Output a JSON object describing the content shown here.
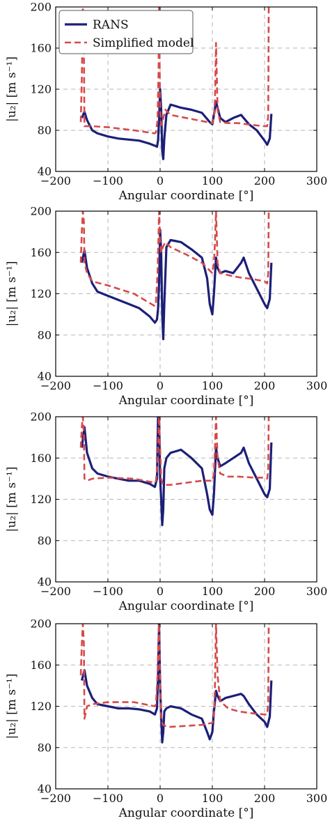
{
  "chart_data": [
    {
      "type": "line",
      "xlabel": "Angular coordinate [°]",
      "ylabel": "|u₂| [m s⁻¹]",
      "xlim": [
        -200,
        300
      ],
      "ylim": [
        40,
        200
      ],
      "xticks": [
        "−200",
        "−100",
        "0",
        "100",
        "200",
        "300"
      ],
      "yticks": [
        "40",
        "80",
        "120",
        "160",
        "200"
      ],
      "grid": "dashed",
      "legend": {
        "placement": "top-left",
        "entries": [
          "RANS",
          "Simplified model"
        ]
      },
      "colors": {
        "RANS": "#1c1f78",
        "Simplified model": "#d64a4a"
      },
      "series": [
        {
          "name": "RANS",
          "x": [
            -150,
            -145,
            -140,
            -130,
            -120,
            -100,
            -80,
            -60,
            -40,
            -20,
            -10,
            -6,
            -4,
            -2,
            0,
            2,
            4,
            6,
            8,
            12,
            20,
            40,
            60,
            80,
            95,
            100,
            103,
            107,
            110,
            115,
            125,
            140,
            155,
            160,
            170,
            185,
            200,
            205,
            210,
            213
          ],
          "y": [
            92,
            98,
            90,
            80,
            77,
            74,
            72,
            71,
            70,
            67,
            65,
            64,
            70,
            90,
            120,
            100,
            60,
            52,
            72,
            95,
            105,
            102,
            100,
            97,
            88,
            86,
            95,
            108,
            102,
            92,
            88,
            92,
            95,
            92,
            86,
            80,
            70,
            66,
            72,
            96
          ]
        },
        {
          "name": "Simplified model",
          "x": [
            -152,
            -150,
            -148,
            -146,
            -145,
            -140,
            -130,
            -100,
            -50,
            -10,
            -8,
            -5,
            -3,
            -2,
            0,
            2,
            5,
            10,
            20,
            50,
            80,
            100,
            103,
            105,
            107,
            110,
            115,
            130,
            150,
            180,
            200,
            205,
            207,
            208,
            210
          ],
          "y": [
            88,
            130,
            200,
            160,
            84,
            84,
            84,
            83,
            80,
            77,
            78,
            90,
            140,
            200,
            100,
            85,
            90,
            100,
            95,
            92,
            89,
            87,
            92,
            110,
            165,
            100,
            88,
            87,
            87,
            85,
            84,
            84,
            95,
            200,
            200
          ]
        }
      ]
    },
    {
      "type": "line",
      "xlabel": "Angular coordinate [°]",
      "ylabel": "|u₂| [m s⁻¹]",
      "xlim": [
        -200,
        300
      ],
      "ylim": [
        40,
        200
      ],
      "xticks": [
        "−200",
        "−100",
        "0",
        "100",
        "200",
        "300"
      ],
      "yticks": [
        "40",
        "80",
        "120",
        "160",
        "200"
      ],
      "grid": "dashed",
      "colors": {
        "RANS": "#1c1f78",
        "Simplified model": "#d64a4a"
      },
      "series": [
        {
          "name": "RANS",
          "x": [
            -150,
            -145,
            -140,
            -130,
            -120,
            -100,
            -80,
            -60,
            -40,
            -20,
            -10,
            -6,
            -4,
            -2,
            0,
            2,
            4,
            6,
            8,
            12,
            20,
            40,
            60,
            80,
            90,
            95,
            100,
            103,
            107,
            110,
            115,
            125,
            140,
            155,
            160,
            170,
            185,
            200,
            205,
            210,
            213
          ],
          "y": [
            150,
            162,
            145,
            130,
            122,
            118,
            114,
            110,
            106,
            98,
            92,
            95,
            105,
            130,
            182,
            160,
            100,
            76,
            110,
            165,
            172,
            170,
            163,
            155,
            135,
            110,
            100,
            120,
            155,
            145,
            140,
            142,
            140,
            150,
            155,
            140,
            125,
            110,
            106,
            115,
            150
          ]
        },
        {
          "name": "Simplified model",
          "x": [
            -152,
            -150,
            -148,
            -146,
            -145,
            -140,
            -130,
            -100,
            -50,
            -10,
            -8,
            -5,
            -3,
            -2,
            0,
            2,
            5,
            10,
            20,
            50,
            80,
            100,
            103,
            105,
            107,
            110,
            115,
            130,
            150,
            180,
            200,
            205,
            207,
            208,
            210
          ],
          "y": [
            150,
            180,
            200,
            190,
            150,
            140,
            132,
            128,
            120,
            108,
            112,
            140,
            180,
            200,
            170,
            160,
            165,
            170,
            165,
            158,
            150,
            140,
            150,
            170,
            200,
            150,
            140,
            138,
            136,
            134,
            132,
            130,
            140,
            200,
            200
          ]
        }
      ]
    },
    {
      "type": "line",
      "xlabel": "Angular coordinate [°]",
      "ylabel": "|u₂| [m s⁻¹]",
      "xlim": [
        -200,
        300
      ],
      "ylim": [
        40,
        200
      ],
      "xticks": [
        "−200",
        "−100",
        "0",
        "100",
        "200",
        "300"
      ],
      "yticks": [
        "40",
        "80",
        "120",
        "160",
        "200"
      ],
      "grid": "dashed",
      "colors": {
        "RANS": "#1c1f78",
        "Simplified model": "#d64a4a"
      },
      "series": [
        {
          "name": "RANS",
          "x": [
            -150,
            -145,
            -140,
            -130,
            -120,
            -100,
            -80,
            -60,
            -40,
            -20,
            -10,
            -6,
            -4,
            -2,
            0,
            2,
            4,
            6,
            8,
            12,
            20,
            40,
            60,
            80,
            90,
            95,
            100,
            103,
            107,
            110,
            115,
            125,
            140,
            155,
            160,
            170,
            185,
            200,
            205,
            210,
            213
          ],
          "y": [
            170,
            190,
            165,
            150,
            145,
            142,
            140,
            138,
            138,
            135,
            132,
            140,
            200,
            200,
            140,
            120,
            95,
            110,
            150,
            160,
            165,
            168,
            160,
            150,
            125,
            110,
            105,
            125,
            170,
            160,
            152,
            155,
            160,
            165,
            170,
            155,
            140,
            125,
            122,
            130,
            175
          ]
        },
        {
          "name": "Simplified model",
          "x": [
            -152,
            -150,
            -148,
            -146,
            -145,
            -140,
            -130,
            -100,
            -50,
            -10,
            -8,
            -5,
            -3,
            -2,
            0,
            2,
            5,
            10,
            20,
            50,
            80,
            100,
            103,
            105,
            107,
            110,
            115,
            130,
            150,
            180,
            200,
            205,
            207,
            208,
            210
          ],
          "y": [
            170,
            190,
            200,
            185,
            140,
            138,
            140,
            141,
            140,
            136,
            138,
            155,
            190,
            200,
            170,
            140,
            135,
            134,
            134,
            136,
            138,
            138,
            145,
            170,
            200,
            160,
            145,
            142,
            142,
            141,
            141,
            140,
            150,
            200,
            200
          ]
        }
      ]
    },
    {
      "type": "line",
      "xlabel": "Angular coordinate [°]",
      "ylabel": "|u₂| [m s⁻¹]",
      "xlim": [
        -200,
        300
      ],
      "ylim": [
        40,
        200
      ],
      "xticks": [
        "−200",
        "−100",
        "0",
        "100",
        "200",
        "300"
      ],
      "yticks": [
        "40",
        "80",
        "120",
        "160",
        "200"
      ],
      "grid": "dashed",
      "colors": {
        "RANS": "#1c1f78",
        "Simplified model": "#d64a4a"
      },
      "series": [
        {
          "name": "RANS",
          "x": [
            -150,
            -145,
            -140,
            -130,
            -120,
            -100,
            -80,
            -60,
            -40,
            -20,
            -10,
            -6,
            -4,
            -2,
            0,
            2,
            4,
            6,
            8,
            12,
            20,
            40,
            60,
            80,
            90,
            95,
            100,
            103,
            107,
            110,
            115,
            125,
            140,
            155,
            160,
            170,
            185,
            200,
            205,
            210,
            213
          ],
          "y": [
            145,
            155,
            140,
            128,
            122,
            120,
            118,
            118,
            117,
            115,
            112,
            118,
            150,
            200,
            140,
            110,
            85,
            95,
            115,
            118,
            120,
            118,
            112,
            108,
            95,
            88,
            95,
            115,
            135,
            130,
            125,
            128,
            130,
            132,
            130,
            122,
            112,
            105,
            100,
            110,
            145
          ]
        },
        {
          "name": "Simplified model",
          "x": [
            -152,
            -150,
            -148,
            -146,
            -145,
            -140,
            -130,
            -100,
            -50,
            -10,
            -8,
            -5,
            -3,
            -2,
            0,
            2,
            5,
            10,
            20,
            50,
            80,
            100,
            103,
            105,
            107,
            110,
            115,
            130,
            150,
            180,
            200,
            205,
            207,
            208,
            210
          ],
          "y": [
            150,
            180,
            200,
            180,
            108,
            120,
            122,
            124,
            124,
            120,
            122,
            150,
            190,
            200,
            140,
            110,
            102,
            101,
            100,
            101,
            102,
            104,
            110,
            140,
            200,
            150,
            125,
            118,
            115,
            113,
            112,
            112,
            125,
            200,
            200
          ]
        }
      ]
    }
  ]
}
